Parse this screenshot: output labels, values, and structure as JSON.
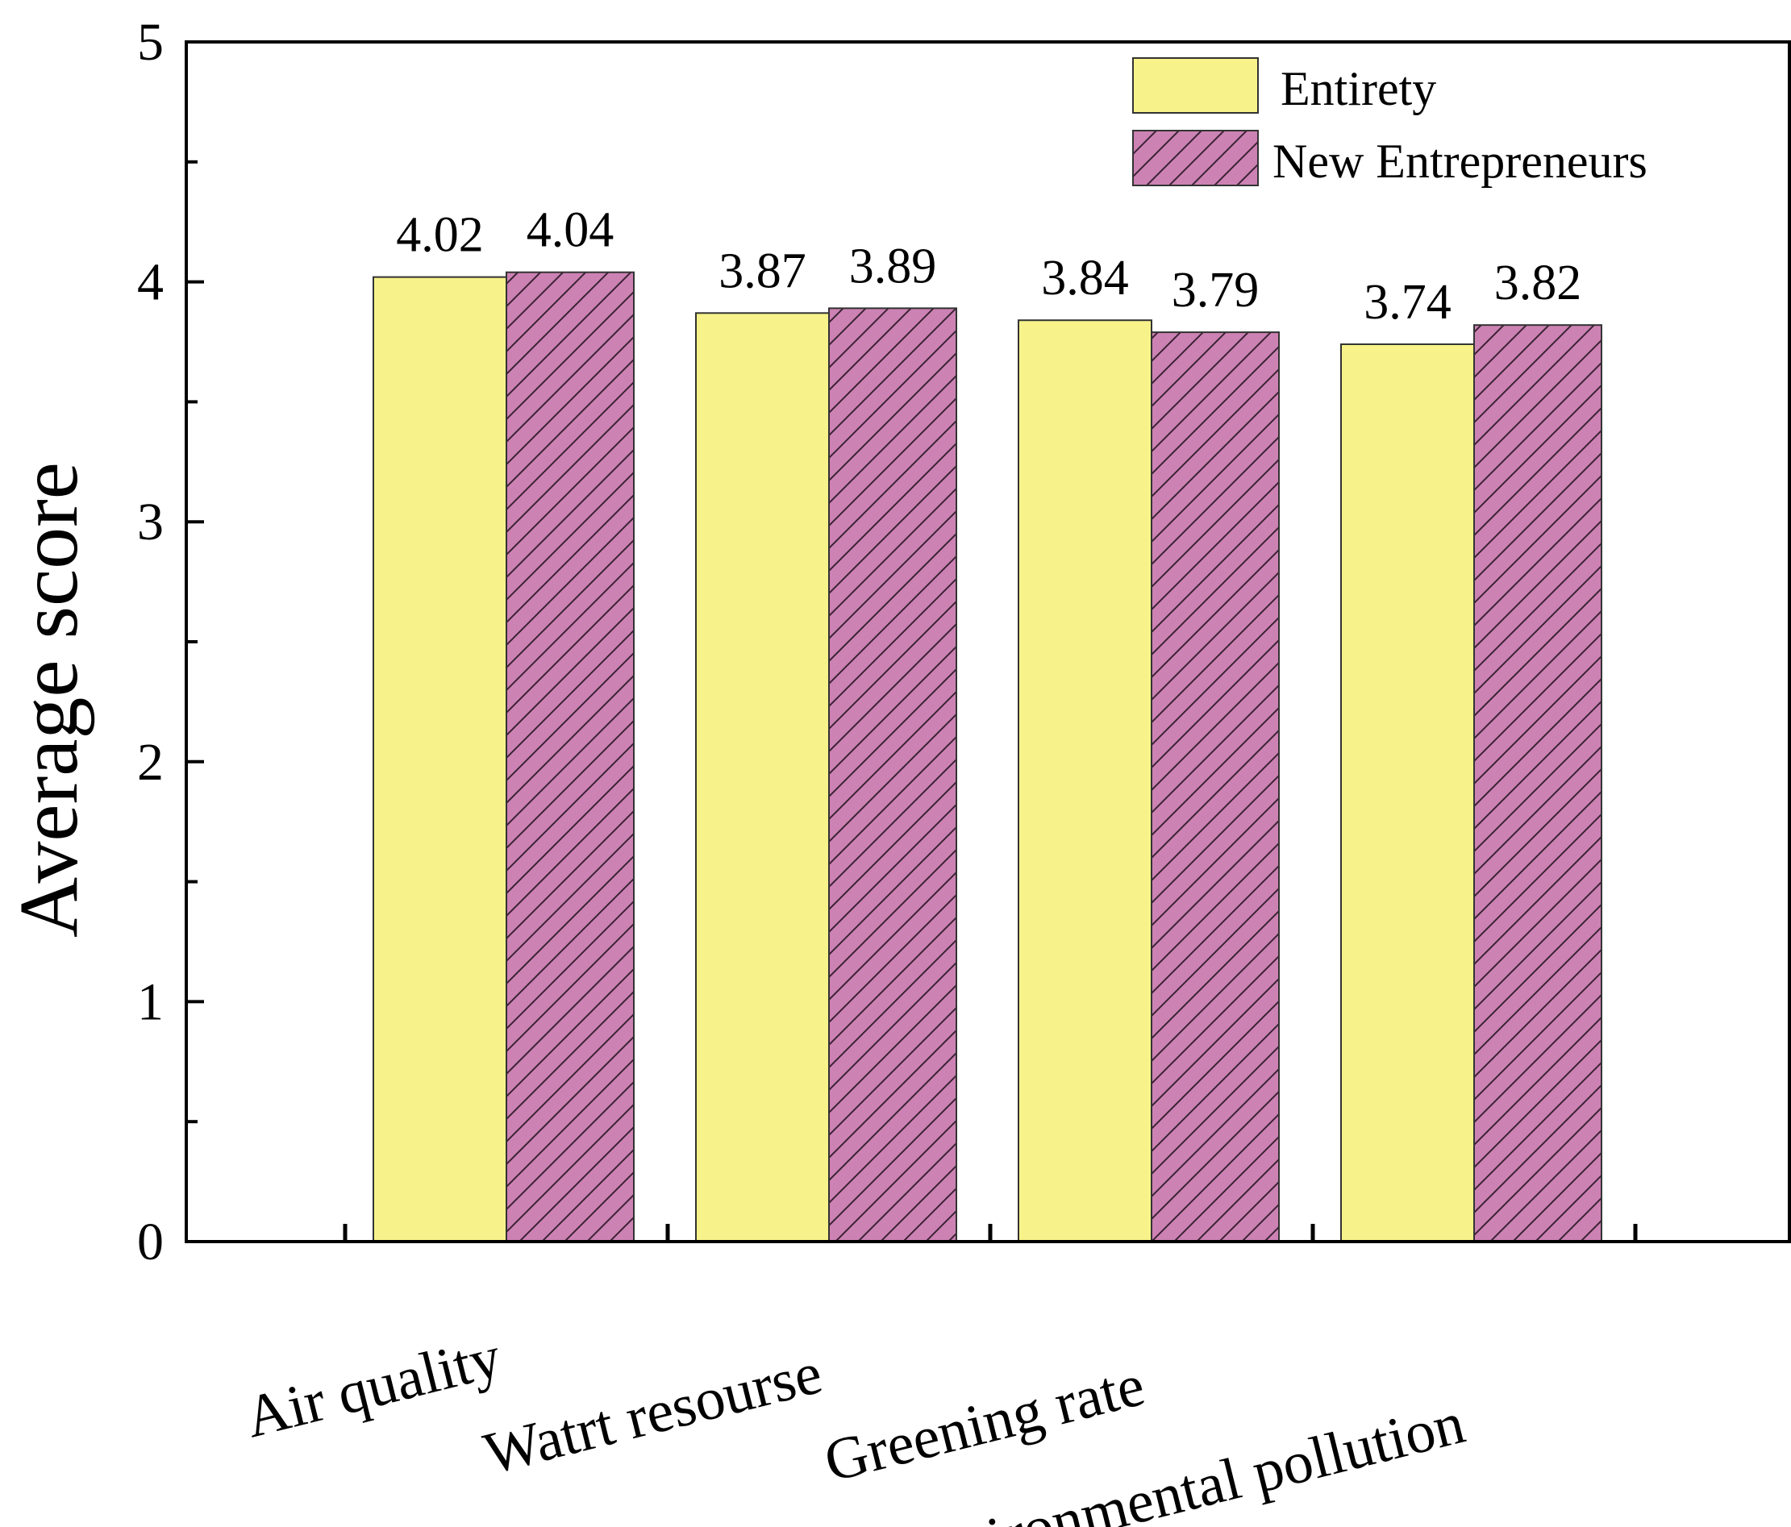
{
  "chart_data": {
    "type": "bar",
    "title": "",
    "xlabel": "",
    "ylabel": "Average score",
    "ylim": [
      0,
      5
    ],
    "yticks": [
      "0",
      "1",
      "2",
      "3",
      "4",
      "5"
    ],
    "grid": false,
    "legend_position": "top-right",
    "categories": [
      "Air quality",
      "Watrt resourse",
      "Greening rate",
      "Environmental pollution"
    ],
    "series": [
      {
        "name": "Entirety",
        "color": "#f7f38a",
        "pattern": "solid",
        "values": [
          4.02,
          3.87,
          3.84,
          3.74
        ],
        "labels": [
          "4.02",
          "3.87",
          "3.84",
          "3.74"
        ]
      },
      {
        "name": "New Entrepreneurs",
        "color": "#cd82b4",
        "pattern": "diagonal-hatch",
        "values": [
          4.04,
          3.89,
          3.79,
          3.82
        ],
        "labels": [
          "4.04",
          "3.89",
          "3.79",
          "3.82"
        ]
      }
    ]
  }
}
